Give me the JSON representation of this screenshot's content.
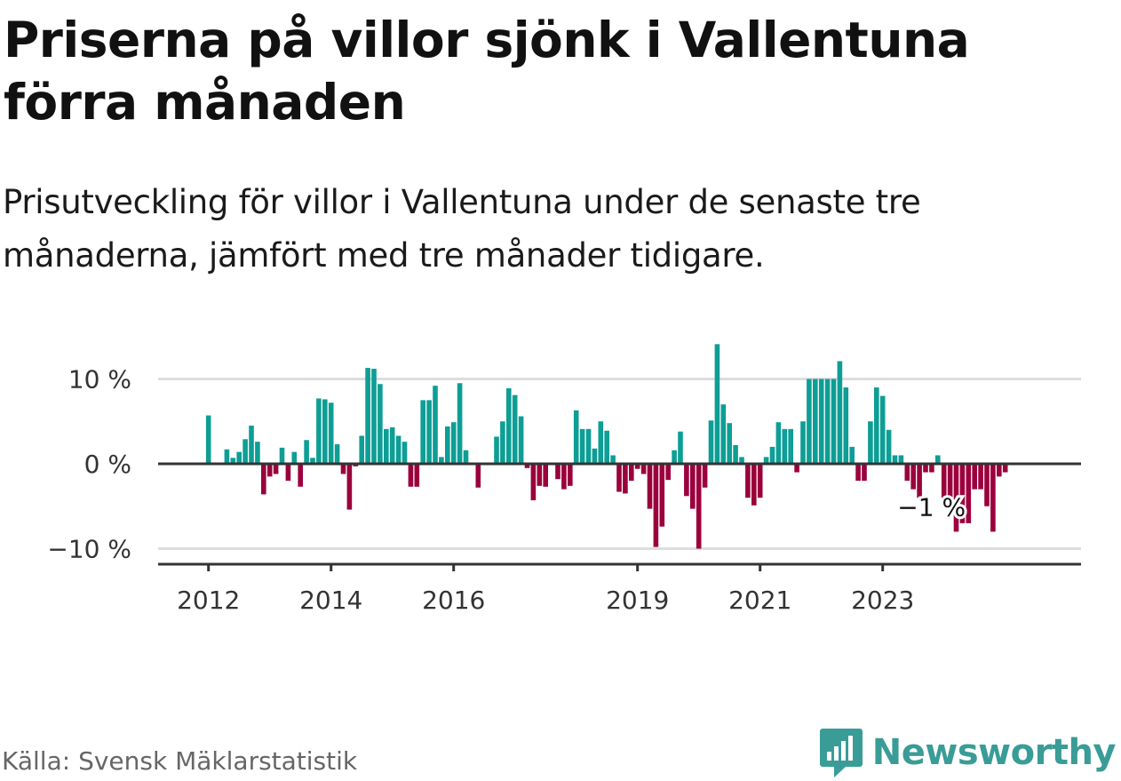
{
  "title": "Priserna på villor sjönk i Vallentuna förra månaden",
  "subtitle": "Prisutveckling för villor i Vallentuna under de senaste tre månaderna, jämfört med tre månader tidigare.",
  "source": "Källa: Svensk Mäklarstatistik",
  "brand": {
    "name": "Newsworthy",
    "icon": "newsworthy-logo-icon",
    "color": "#3a9c97"
  },
  "colors": {
    "positive": "#0d9e95",
    "negative": "#9b003c",
    "grid": "#dddddd",
    "axis": "#333333"
  },
  "chart_data": {
    "type": "bar",
    "title": "",
    "xlabel": "",
    "ylabel": "",
    "ylim": [
      -10,
      10
    ],
    "grid": true,
    "yticks": [
      10,
      0,
      -10
    ],
    "ytick_labels": [
      "10 %",
      "0 %",
      "−10 %"
    ],
    "xticks": [
      {
        "label": "2012",
        "index": 1
      },
      {
        "label": "2014",
        "index": 21
      },
      {
        "label": "2016",
        "index": 41
      },
      {
        "label": "2019",
        "index": 71
      },
      {
        "label": "2021",
        "index": 91
      },
      {
        "label": "2023",
        "index": 111
      }
    ],
    "annotation": {
      "label": "−1 %",
      "index": 117
    },
    "series": [
      {
        "values": [
          0,
          5.7,
          0,
          0,
          1.7,
          0.7,
          1.4,
          2.9,
          4.5,
          2.6,
          -3.6,
          -1.5,
          -1.2,
          1.9,
          -2,
          1.4,
          -2.7,
          2.8,
          0.7,
          7.7,
          7.6,
          7.2,
          2.3,
          -1.2,
          -5.4,
          -0.3,
          3.3,
          11.3,
          11.2,
          9.4,
          4.1,
          4.3,
          3.3,
          2.6,
          -2.7,
          -2.7,
          7.5,
          7.5,
          9.2,
          0.8,
          4.4,
          4.9,
          9.5,
          1.6,
          0,
          -2.8,
          0,
          0,
          3.2,
          5,
          8.9,
          8.1,
          5.6,
          -0.5,
          -4.3,
          -2.6,
          -2.7,
          0,
          -1.8,
          -3,
          -2.6,
          6.3,
          4.1,
          4.1,
          1.8,
          5,
          3.9,
          1,
          -3.3,
          -3.5,
          -2,
          -0.6,
          -1.2,
          -5.3,
          -9.8,
          -7.4,
          -1.9,
          1.6,
          3.8,
          -3.8,
          -5.3,
          -10,
          -2.8,
          5.1,
          14.1,
          7,
          4.8,
          2.2,
          0.8,
          -4,
          -4.9,
          -4,
          0.8,
          2,
          4.9,
          4.1,
          4.1,
          -1,
          5,
          10,
          10,
          10,
          10,
          10,
          12.1,
          9,
          2,
          -2,
          -2,
          5,
          9,
          8,
          4,
          1,
          1,
          -2,
          -3,
          -4,
          -1,
          -1,
          1,
          -4,
          -4,
          -8,
          -7,
          -7,
          -3,
          -3,
          -5,
          -8,
          -1.5,
          -1
        ]
      }
    ]
  }
}
